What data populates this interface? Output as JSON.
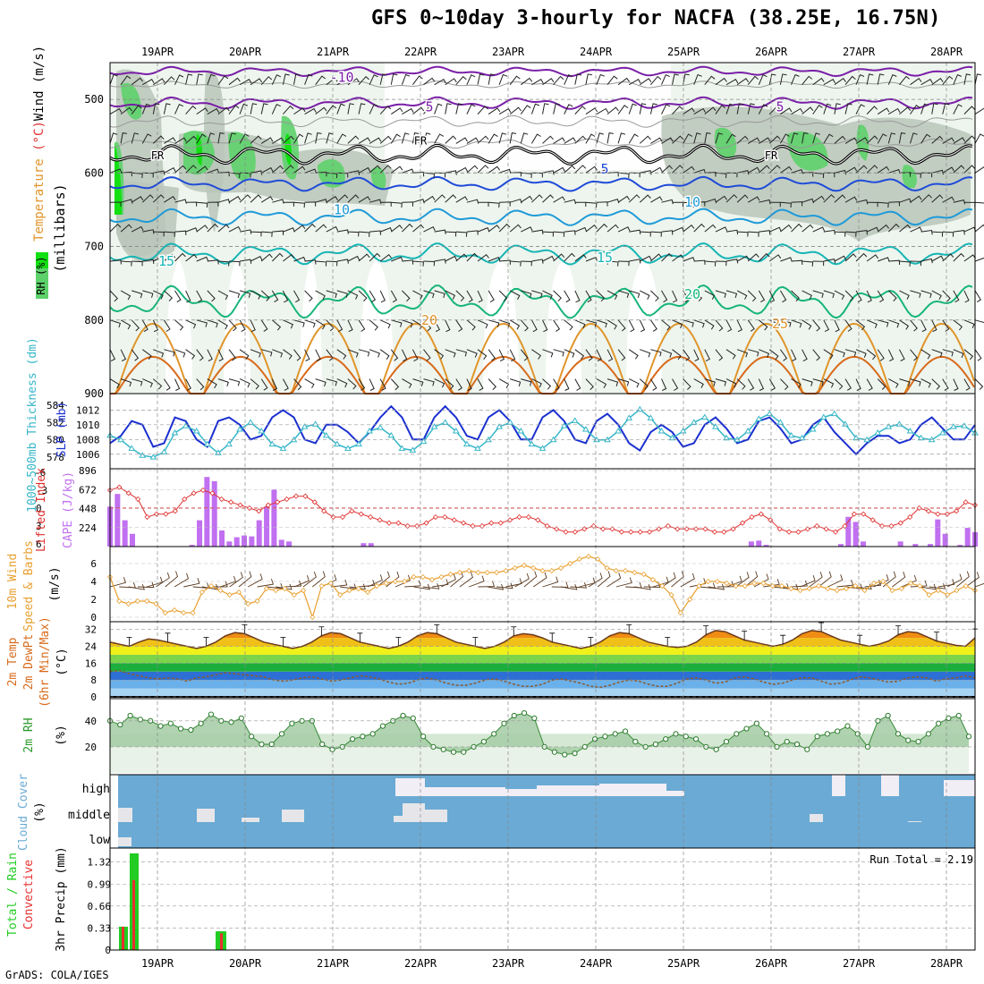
{
  "title": "GFS 0~10day 3-hourly for NACFA (38.25E, 16.75N)",
  "credit": "GrADS: COLA/IGES",
  "colors": {
    "rh": "#3bd34a",
    "t_neg": "#7a1fa8",
    "t_cold": "#1f4bd8",
    "t_cool": "#1f9ad8",
    "t_mild": "#17b5b5",
    "t_warm": "#17b57a",
    "t_hot": "#e0952a",
    "t_hotter": "#d86a1a",
    "slp": "#1a2fd0",
    "thickness": "#36b6c8",
    "cape": "#c070f0",
    "li": "#e03030",
    "wind": "#e8a030",
    "dewpt": "#8a5a30",
    "rh2m": "#6ab06a",
    "cloud": "#6aaad4",
    "precip_total": "#22cc22",
    "precip_conv": "#e83030"
  },
  "chart_data": [
    {
      "type": "area",
      "name": "upper-air",
      "title": "",
      "xlabel": "",
      "ylabel": "(millibars)",
      "y_legend": [
        "RH (%)",
        "Temperature (°C)",
        "Wind (m/s)"
      ],
      "x_ticks": [
        "19APR",
        "20APR",
        "21APR",
        "22APR",
        "23APR",
        "24APR",
        "25APR",
        "26APR",
        "27APR",
        "28APR"
      ],
      "ylim": [
        900,
        450
      ],
      "y_ticks": [
        500,
        600,
        700,
        800,
        900
      ],
      "isotherm_labels": [
        {
          "label": "-10",
          "level": "~470mb",
          "day": "21APR"
        },
        {
          "label": "5",
          "level": "~510mb",
          "day": "22APR"
        },
        {
          "label": "5",
          "level": "~510mb",
          "day": "26APR"
        },
        {
          "label": "FR",
          "level": "~575mb",
          "day": "19APR"
        },
        {
          "label": "FR",
          "level": "~555mb",
          "day": "22APR"
        },
        {
          "label": "FR",
          "level": "~575mb",
          "day": "26APR"
        },
        {
          "label": "5",
          "level": "~595mb",
          "day": "24APR"
        },
        {
          "label": "10",
          "level": "~650mb",
          "day": "21APR"
        },
        {
          "label": "10",
          "level": "~640mb",
          "day": "25APR"
        },
        {
          "label": "15",
          "level": "~720mb",
          "day": "19APR"
        },
        {
          "label": "15",
          "level": "~715mb",
          "day": "24APR"
        },
        {
          "label": "20",
          "level": "~800mb",
          "day": "22APR"
        },
        {
          "label": "20",
          "level": "~765mb",
          "day": "25APR"
        },
        {
          "label": "25",
          "level": "~805mb",
          "day": "26APR"
        }
      ]
    },
    {
      "type": "line",
      "name": "slp-thickness",
      "y_labels": [
        "1000~500mb Thickness (dm)",
        "SLP (mb)"
      ],
      "thickness_ticks": [
        578,
        580,
        582,
        584
      ],
      "slp_ticks": [
        1006,
        1008,
        1010,
        1012
      ],
      "series": [
        {
          "name": "SLP",
          "values": [
            1007.5,
            1008.5,
            1010.5,
            1010,
            1007,
            1007.5,
            1011,
            1010.5,
            1008,
            1007,
            1010.5,
            1011,
            1010,
            1008,
            1008.5,
            1011,
            1012,
            1011,
            1008,
            1007.5,
            1010,
            1010,
            1009,
            1007.5,
            1009,
            1011,
            1012.5,
            1011,
            1008,
            1008,
            1011,
            1012.5,
            1011,
            1008.5,
            1008,
            1011,
            1012,
            1010.5,
            1008,
            1008,
            1011,
            1012,
            1010.5,
            1008,
            1007.5,
            1010.5,
            1011.5,
            1010,
            1007.5,
            1006.5,
            1009,
            1010,
            1009,
            1007,
            1007.5,
            1010,
            1011,
            1009.5,
            1007.5,
            1008,
            1010.5,
            1011,
            1009.5,
            1007.5,
            1008,
            1010,
            1011,
            1009,
            1007.5,
            1006,
            1007.5,
            1008.5,
            1008.5,
            1007.5,
            1008,
            1010,
            1011,
            1009.5,
            1008,
            1008,
            1010
          ]
        },
        {
          "name": "Thickness",
          "values": [
            580.5,
            580,
            579,
            578.2,
            578,
            578.6,
            580.8,
            581.6,
            581,
            579.5,
            578.5,
            579.5,
            581.2,
            582,
            581,
            579.5,
            579,
            580,
            581.5,
            581.8,
            580.5,
            579.5,
            579,
            579.5,
            581,
            581.4,
            580.5,
            579,
            578.8,
            579.8,
            581.5,
            582,
            581,
            579.5,
            579,
            580,
            581.5,
            582,
            581,
            579.5,
            579,
            580,
            581.6,
            582.2,
            581.2,
            580,
            580,
            581,
            582.5,
            583.5,
            582.5,
            581,
            580.2,
            581,
            582,
            582.6,
            581.5,
            580.2,
            580,
            581,
            582.4,
            583,
            582,
            580.5,
            580.2,
            581.2,
            582.6,
            583,
            581.8,
            580.2,
            580,
            580.8,
            581.5,
            581.8,
            581,
            580.2,
            580,
            580.8,
            581.5,
            581.6,
            580.8
          ]
        }
      ]
    },
    {
      "type": "bar",
      "name": "cape-li",
      "y_labels": [
        "Lifted Index",
        "CAPE (J/kg)"
      ],
      "cape_ticks": [
        224,
        448,
        672,
        896
      ],
      "li_ticks": [
        -3,
        0,
        3,
        6
      ],
      "li_top_label": "-6",
      "series": [
        {
          "name": "CAPE",
          "values": [
            470,
            620,
            310,
            150,
            0,
            0,
            0,
            0,
            0,
            0,
            0,
            20,
            310,
            820,
            770,
            190,
            60,
            110,
            130,
            120,
            310,
            470,
            670,
            80,
            60,
            0,
            0,
            0,
            0,
            0,
            0,
            0,
            0,
            0,
            40,
            40,
            0,
            0,
            0,
            0,
            0,
            0,
            0,
            0,
            0,
            0,
            0,
            0,
            0,
            0,
            0,
            0,
            0,
            0,
            0,
            0,
            0,
            0,
            0,
            0,
            0,
            0,
            0,
            0,
            0,
            0,
            0,
            0,
            0,
            0,
            0,
            0,
            0,
            0,
            0,
            0,
            0,
            0,
            0,
            0,
            0,
            0,
            0,
            0,
            0,
            0,
            60,
            70,
            20,
            0,
            0,
            0,
            0,
            0,
            0,
            0,
            0,
            0,
            30,
            350,
            290,
            60,
            0,
            0,
            0,
            0,
            60,
            0,
            30,
            0,
            30,
            320,
            150,
            0,
            20,
            220,
            170
          ]
        },
        {
          "name": "Lifted Index",
          "values": [
            -3,
            -3.5,
            -2.5,
            -1.5,
            1.5,
            1,
            1,
            0.5,
            -1.5,
            -2.5,
            -3,
            -2.5,
            -1.5,
            -1,
            -0.5,
            0,
            0.5,
            -0.5,
            -1,
            -1.5,
            -2,
            -2,
            -1,
            0.5,
            1.5,
            1.5,
            0.5,
            1,
            1.5,
            2,
            2.5,
            2.5,
            3,
            3,
            2.5,
            1.5,
            1.5,
            2,
            2.5,
            3,
            3,
            2.5,
            2.5,
            2,
            1.5,
            1.5,
            2,
            3,
            3.5,
            4,
            4,
            3.5,
            3,
            3.5,
            3.5,
            4,
            4,
            4,
            4,
            3.5,
            3,
            3.5,
            3.5,
            3.5,
            3.5,
            4,
            4,
            3.5,
            2.5,
            1.5,
            1,
            2,
            3.5,
            4,
            4,
            3.5,
            3,
            3.5,
            4,
            3,
            1,
            1,
            2,
            3,
            3,
            2.5,
            1.5,
            0,
            0.5,
            1,
            1,
            0.5,
            -1,
            -0.5
          ]
        }
      ]
    },
    {
      "type": "line",
      "name": "wind10m",
      "y_labels": [
        "10m Wind",
        "Speed & Barbs",
        "(m/s)"
      ],
      "y_ticks": [
        0,
        2,
        4,
        6
      ],
      "series": [
        {
          "name": "Speed",
          "values": [
            4.5,
            1.8,
            1.5,
            1.8,
            1.8,
            1.5,
            0.5,
            0.8,
            0.5,
            0.5,
            2.8,
            3.5,
            3,
            2.5,
            2.8,
            1.5,
            1.8,
            3.2,
            3,
            3.2,
            2.5,
            3,
            0,
            3.5,
            3.8,
            2.5,
            3,
            3.2,
            2.8,
            3.5,
            3.8,
            4,
            4,
            4.5,
            4.5,
            4.2,
            4.5,
            4.8,
            5,
            5.2,
            5,
            5,
            5,
            5.2,
            5.5,
            5.8,
            5.5,
            5.2,
            5.2,
            5.5,
            6,
            6.5,
            6.8,
            6.5,
            5.5,
            5.2,
            5.2,
            5,
            4.8,
            4.2,
            3.5,
            2.5,
            0.5,
            2,
            3.5,
            4,
            4,
            3.8,
            3.5,
            3.5,
            3.8,
            3.8,
            3.5,
            3.5,
            3.2,
            3,
            3.2,
            3.5,
            3.2,
            3,
            3.2,
            3.5,
            3,
            3.8,
            4,
            3,
            3.2,
            3.8,
            3.5,
            2.5,
            3,
            2.5,
            3,
            3.5,
            3
          ]
        }
      ]
    },
    {
      "type": "area",
      "name": "temp2m",
      "y_labels": [
        "2m Temp",
        "2m DewPt",
        "(6hr Min/Max)",
        "(°C)"
      ],
      "y_ticks": [
        0,
        8,
        16,
        24,
        32
      ],
      "series": [
        {
          "name": "Temp",
          "values": [
            26,
            25,
            24,
            26,
            27.5,
            27,
            26,
            25,
            24,
            23,
            24,
            26,
            29,
            30.5,
            30,
            28,
            26,
            25,
            24,
            23,
            24,
            26,
            29,
            30.5,
            30,
            28,
            26,
            25,
            24,
            23,
            24,
            26,
            29,
            30.5,
            30,
            28,
            26,
            25,
            24,
            23,
            24,
            26,
            29,
            30,
            29.5,
            28,
            26,
            25,
            24,
            23,
            24,
            26,
            29,
            30.5,
            30,
            28,
            26,
            25,
            24,
            23.5,
            24,
            26,
            29.5,
            31.5,
            31,
            29,
            27,
            26,
            25,
            24,
            25,
            27,
            30,
            31.5,
            31,
            29,
            27,
            26,
            25,
            24,
            25,
            26.5,
            29.5,
            31,
            30.5,
            28.5,
            26.5,
            25.5,
            24.5,
            24,
            28
          ]
        },
        {
          "name": "DewPt",
          "values": [
            12,
            12.5,
            11,
            10,
            9,
            8.5,
            9,
            8.5,
            7.5,
            9,
            9.5,
            10.5,
            11.5,
            11,
            10.5,
            10,
            9.5,
            8,
            7.5,
            8,
            9,
            9.5,
            8.5,
            7.5,
            8,
            9,
            10,
            9.5,
            8.5,
            7,
            6,
            6.5,
            8,
            9,
            8,
            6.5,
            5.5,
            5.5,
            6.5,
            8,
            8.5,
            7.5,
            6,
            5,
            5,
            6,
            8,
            8.5,
            7.5,
            6.5,
            5,
            4.5,
            5.5,
            7,
            8,
            7.5,
            6,
            5,
            5,
            6.5,
            8.5,
            9,
            8,
            6.5,
            7,
            9,
            9.5,
            8.5,
            7,
            6,
            6.5,
            8,
            9,
            9,
            7.5,
            6,
            6.5,
            8,
            9.5,
            9,
            8,
            7,
            7.5,
            9,
            9.5,
            9,
            7.5,
            8.5,
            9,
            10,
            9
          ]
        }
      ]
    },
    {
      "type": "area",
      "name": "rh2m",
      "y_labels": [
        "2m RH",
        "(%)"
      ],
      "y_ticks": [
        20,
        40
      ],
      "series": [
        {
          "name": "RH",
          "values": [
            40,
            37,
            44,
            41,
            40,
            36,
            38,
            34,
            33,
            38,
            45,
            40,
            39,
            42,
            28,
            22,
            22,
            30,
            38,
            40,
            40,
            22,
            18,
            20,
            26,
            28,
            30,
            36,
            40,
            44,
            42,
            28,
            20,
            18,
            16,
            16,
            20,
            24,
            30,
            38,
            44,
            46,
            42,
            20,
            16,
            14,
            15,
            20,
            26,
            28,
            30,
            32,
            24,
            20,
            22,
            26,
            30,
            28,
            26,
            20,
            18,
            24,
            30,
            34,
            38,
            30,
            20,
            24,
            22,
            18,
            28,
            30,
            32,
            36,
            30,
            20,
            40,
            44,
            30,
            25,
            24,
            30,
            38,
            42,
            44,
            28
          ]
        }
      ]
    },
    {
      "type": "bar",
      "name": "cloud",
      "y_labels": [
        "Cloud Cover",
        "(%)"
      ],
      "categories": [
        "high",
        "middle",
        "low"
      ]
    },
    {
      "type": "bar",
      "name": "precip",
      "y_labels": [
        "Total / Rain",
        "Convective",
        "3hr Precip (mm)"
      ],
      "y_ticks": [
        0,
        0.33,
        0.66,
        0.99,
        1.32
      ],
      "run_total": "Run Total = 2.19",
      "series": [
        {
          "name": "Total",
          "values": [
            0.35,
            1.45,
            0,
            0,
            0,
            0,
            0,
            0,
            0,
            0.28
          ]
        },
        {
          "name": "Convective",
          "values": [
            0.35,
            1.05,
            0,
            0,
            0,
            0,
            0,
            0,
            0,
            0.25
          ]
        }
      ]
    }
  ]
}
